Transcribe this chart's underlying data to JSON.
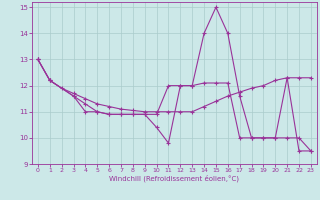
{
  "color": "#993399",
  "bg_color": "#cce8e8",
  "grid_color": "#aacccc",
  "xlabel": "Windchill (Refroidissement éolien,°C)",
  "ylim": [
    9,
    15.2
  ],
  "xlim": [
    -0.5,
    23.5
  ],
  "yticks": [
    9,
    10,
    11,
    12,
    13,
    14,
    15
  ],
  "xticks": [
    0,
    1,
    2,
    3,
    4,
    5,
    6,
    7,
    8,
    9,
    10,
    11,
    12,
    13,
    14,
    15,
    16,
    17,
    18,
    19,
    20,
    21,
    22,
    23
  ],
  "line1_x": [
    0,
    1,
    3,
    4,
    5,
    6,
    7,
    8,
    9,
    10,
    11,
    12,
    13,
    14,
    15,
    16,
    17,
    18,
    19,
    20,
    21,
    22,
    23
  ],
  "line1_y": [
    13.0,
    12.2,
    11.6,
    11.3,
    11.0,
    10.9,
    10.9,
    10.9,
    10.9,
    10.4,
    9.8,
    12.0,
    12.0,
    14.0,
    15.0,
    14.0,
    11.6,
    10.0,
    10.0,
    10.0,
    10.0,
    10.0,
    9.5
  ],
  "line2_x": [
    0,
    1,
    2,
    3,
    4,
    5,
    6,
    7,
    8,
    9,
    10,
    11,
    12,
    13,
    14,
    15,
    16,
    17,
    18,
    19,
    20,
    21,
    22,
    23
  ],
  "line2_y": [
    13.0,
    12.2,
    11.9,
    11.7,
    11.5,
    11.3,
    11.2,
    11.1,
    11.05,
    11.0,
    11.0,
    11.0,
    11.0,
    11.0,
    11.2,
    11.4,
    11.6,
    11.75,
    11.9,
    12.0,
    12.2,
    12.3,
    12.3,
    12.3
  ],
  "line3_x": [
    0,
    1,
    3,
    4,
    5,
    6,
    7,
    8,
    9,
    10,
    11,
    12,
    13,
    14,
    15,
    16,
    17,
    18,
    19,
    20,
    21,
    22,
    23
  ],
  "line3_y": [
    13.0,
    12.2,
    11.6,
    11.0,
    11.0,
    10.9,
    10.9,
    10.9,
    10.9,
    10.9,
    12.0,
    12.0,
    12.0,
    12.1,
    12.1,
    12.1,
    10.0,
    10.0,
    10.0,
    10.0,
    12.3,
    9.5,
    9.5
  ]
}
